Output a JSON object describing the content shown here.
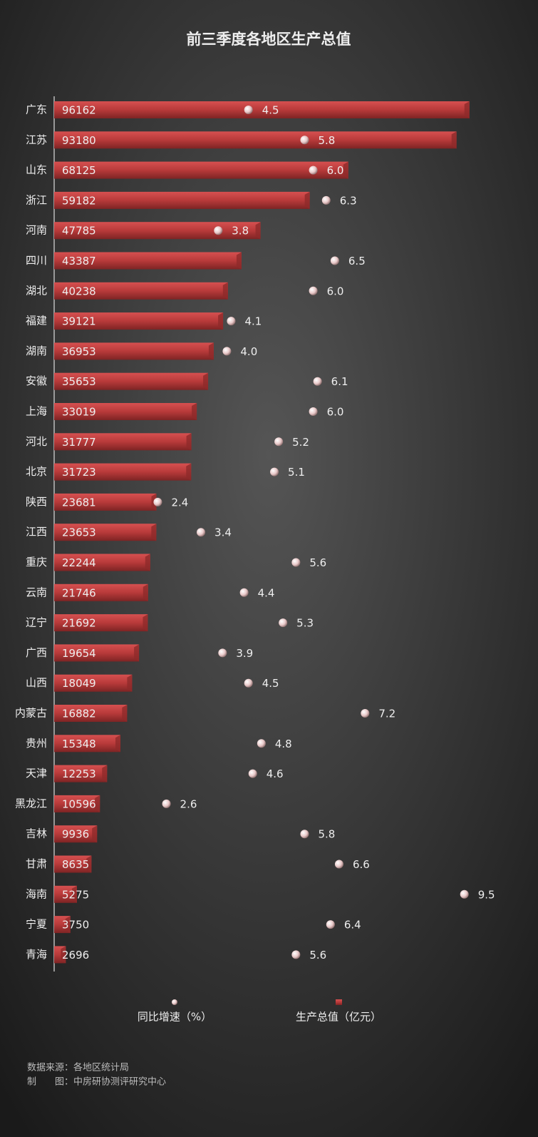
{
  "chart_data": {
    "type": "bar",
    "title": "前三季度各地区生产总值",
    "orientation": "horizontal",
    "categories": [
      "广东",
      "江苏",
      "山东",
      "浙江",
      "河南",
      "四川",
      "湖北",
      "福建",
      "湖南",
      "安徽",
      "上海",
      "河北",
      "北京",
      "陕西",
      "江西",
      "重庆",
      "云南",
      "辽宁",
      "广西",
      "山西",
      "内蒙古",
      "贵州",
      "天津",
      "黑龙江",
      "吉林",
      "甘肃",
      "海南",
      "宁夏",
      "青海"
    ],
    "series": [
      {
        "name": "生产总值（亿元）",
        "type": "bar",
        "color": "#b83a3a",
        "values": [
          96162,
          93180,
          68125,
          59182,
          47785,
          43387,
          40238,
          39121,
          36953,
          35653,
          33019,
          31777,
          31723,
          23681,
          23653,
          22244,
          21746,
          21692,
          19654,
          18049,
          16882,
          15348,
          12253,
          10596,
          9936,
          8635,
          5275,
          3750,
          2696
        ]
      },
      {
        "name": "同比增速（%）",
        "type": "scatter",
        "axis": "x2",
        "color": "#f0d8d8",
        "values": [
          4.5,
          5.8,
          6,
          6.3,
          3.8,
          6.5,
          6,
          4.1,
          4,
          6.1,
          6,
          5.2,
          5.1,
          2.4,
          3.4,
          5.6,
          4.4,
          5.3,
          3.9,
          4.5,
          7.2,
          4.8,
          4.6,
          2.6,
          5.8,
          6.6,
          9.5,
          6.4,
          5.6
        ],
        "value_labels": [
          "4.5",
          "5.8",
          "6.0",
          "6.3",
          "3.8",
          "6.5",
          "6.0",
          "4.1",
          "4.0",
          "6.1",
          "6.0",
          "5.2",
          "5.1",
          "2.4",
          "3.4",
          "5.6",
          "4.4",
          "5.3",
          "3.9",
          "4.5",
          "7.2",
          "4.8",
          "4.6",
          "2.6",
          "5.8",
          "6.6",
          "9.5",
          "6.4",
          "5.6"
        ]
      }
    ],
    "xlim": [
      0,
      100000
    ],
    "x2lim": [
      0,
      10
    ],
    "grid": false,
    "source": "数据来源：各地区统计局",
    "credit": "制　　图：中房研协测评研究中心"
  }
}
